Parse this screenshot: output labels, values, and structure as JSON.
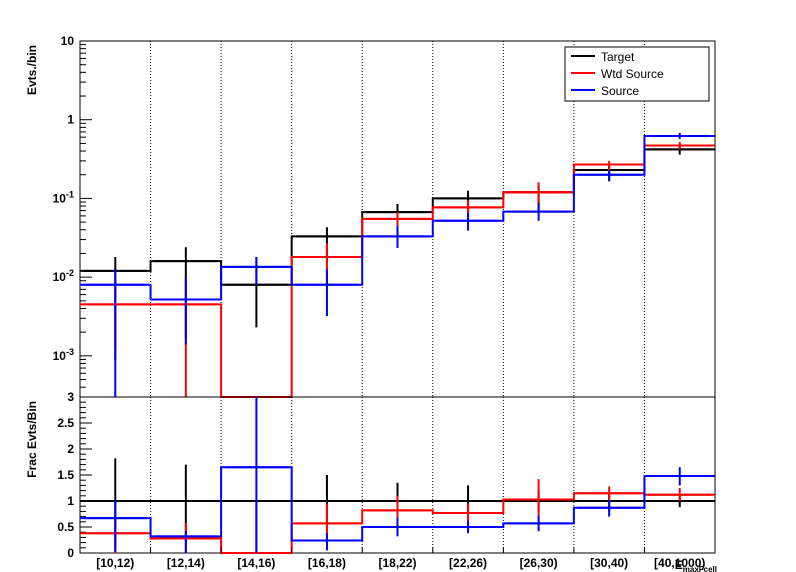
{
  "chart_data": [
    {
      "type": "step-histogram",
      "yscale": "log",
      "ylabel": "Evts./bin",
      "ylim": [
        0.0003,
        10
      ],
      "yticks": [
        {
          "v": 0.001,
          "base": "10",
          "exp": "-3"
        },
        {
          "v": 0.01,
          "base": "10",
          "exp": "-2"
        },
        {
          "v": 0.1,
          "base": "10",
          "exp": "-1"
        },
        {
          "v": 1,
          "base": "1",
          "exp": ""
        },
        {
          "v": 10,
          "base": "10",
          "exp": ""
        }
      ],
      "grid_x": true,
      "legend_position": "top-right",
      "legend": [
        "Target",
        "Wtd Source",
        "Source"
      ],
      "categories": [
        "[10,12)",
        "[12,14)",
        "[14,16)",
        "[16,18)",
        "[18,22)",
        "[22,26)",
        "[26,30)",
        "[30,40)",
        "[40,1000)"
      ],
      "series": [
        {
          "name": "Target",
          "color": "#000000",
          "values": [
            0.012,
            0.016,
            0.008,
            0.033,
            0.067,
            0.1,
            0.12,
            0.23,
            0.42
          ],
          "err_lo": [
            0.0009,
            0.0017,
            0.0023,
            0.0148,
            0.0395,
            0.0545,
            0.07,
            0.165,
            0.36
          ],
          "err_hi": [
            0.018,
            0.024,
            0.018,
            0.043,
            0.085,
            0.125,
            0.145,
            0.27,
            0.47
          ]
        },
        {
          "name": "Wtd Source",
          "color": "#ff0000",
          "values": [
            0.0045,
            0.0045,
            0.0003,
            0.018,
            0.055,
            0.077,
            0.12,
            0.27,
            0.47
          ],
          "err_lo": [
            0.00125,
            0.0003,
            null,
            0.0073,
            0.039,
            0.06,
            0.088,
            0.225,
            0.42
          ],
          "err_hi": [
            0.0078,
            0.0095,
            null,
            0.027,
            0.067,
            0.095,
            0.16,
            0.3,
            0.52
          ]
        },
        {
          "name": "Source",
          "color": "#0000ff",
          "values": [
            0.008,
            0.0052,
            0.0135,
            0.008,
            0.033,
            0.052,
            0.068,
            0.2,
            0.62
          ],
          "err_lo": [
            0.0003,
            0.0014,
            0.008,
            0.0032,
            0.0235,
            0.039,
            0.052,
            0.17,
            0.57
          ],
          "err_hi": [
            0.0125,
            0.0099,
            0.018,
            0.0125,
            0.045,
            0.065,
            0.085,
            0.23,
            0.68
          ]
        }
      ]
    },
    {
      "type": "step-histogram",
      "yscale": "linear",
      "ylabel": "Frac Evts/Bin",
      "ylim": [
        0,
        3
      ],
      "yticks": [
        {
          "v": 0,
          "label": "0"
        },
        {
          "v": 0.5,
          "label": "0.5"
        },
        {
          "v": 1,
          "label": "1"
        },
        {
          "v": 1.5,
          "label": "1.5"
        },
        {
          "v": 2,
          "label": "2"
        },
        {
          "v": 2.5,
          "label": "2.5"
        },
        {
          "v": 3,
          "label": "3"
        }
      ],
      "grid_x": true,
      "xlabel": "E",
      "xlabel_sub": "maxFcell",
      "categories": [
        "[10,12)",
        "[12,14)",
        "[14,16)",
        "[16,18)",
        "[18,22)",
        "[22,26)",
        "[26,30)",
        "[30,40)",
        "[40,1000)"
      ],
      "series": [
        {
          "name": "Target",
          "color": "#000000",
          "values": [
            1,
            1,
            1,
            1,
            1,
            1,
            1,
            1,
            1
          ],
          "err_lo": [
            0.1,
            0.35,
            0.0,
            0.55,
            0.72,
            0.75,
            0.8,
            0.8,
            0.88
          ],
          "err_hi": [
            1.82,
            1.7,
            1.0,
            1.5,
            1.35,
            1.3,
            1.2,
            1.15,
            1.12
          ]
        },
        {
          "name": "Wtd Source",
          "color": "#ff0000",
          "values": [
            0.38,
            0.28,
            0.0,
            0.57,
            0.82,
            0.77,
            1.03,
            1.15,
            1.12
          ],
          "err_lo": [
            0.0,
            0.0,
            null,
            0.2,
            0.55,
            0.58,
            0.7,
            0.98,
            1.0
          ],
          "err_hi": [
            0.7,
            0.58,
            null,
            0.95,
            1.1,
            0.95,
            1.42,
            1.28,
            1.25
          ]
        },
        {
          "name": "Source",
          "color": "#0000ff",
          "values": [
            0.67,
            0.32,
            1.65,
            0.24,
            0.5,
            0.5,
            0.57,
            0.87,
            1.48
          ],
          "err_lo": [
            0.02,
            0.0,
            0.0,
            0.05,
            0.32,
            0.38,
            0.42,
            0.7,
            1.3
          ],
          "err_hi": [
            1.0,
            0.42,
            3.0,
            0.38,
            0.68,
            0.62,
            0.72,
            1.02,
            1.65
          ]
        }
      ]
    }
  ]
}
